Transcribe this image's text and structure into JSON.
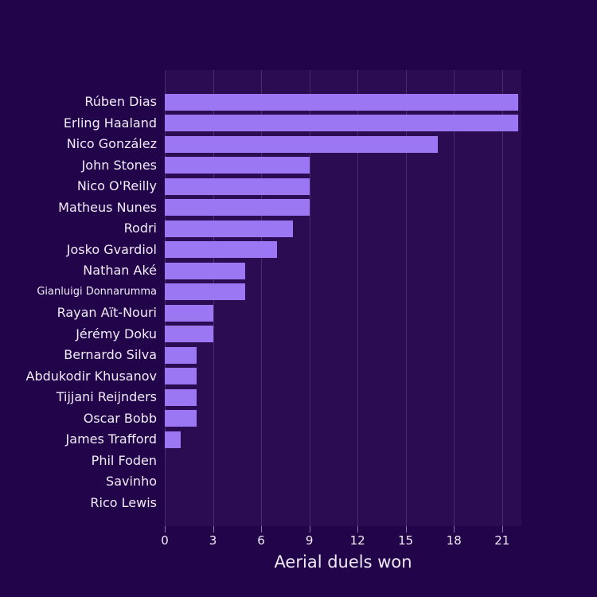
{
  "chart_data": {
    "type": "bar",
    "orientation": "horizontal",
    "xlabel": "Aerial duels won",
    "categories": [
      "Rúben Dias",
      "Erling Haaland",
      "Nico González",
      "John Stones",
      "Nico O'Reilly",
      "Matheus Nunes",
      "Rodri",
      "Josko Gvardiol",
      "Nathan Aké",
      "Gianluigi Donnarumma",
      "Rayan Aït-Nouri",
      "Jérémy Doku",
      "Bernardo Silva",
      "Abdukodir Khusanov",
      "Tijjani Reijnders",
      "Oscar Bobb",
      "James Trafford",
      "Phil Foden",
      "Savinho",
      "Rico Lewis"
    ],
    "values": [
      22,
      22,
      17,
      9,
      9,
      9,
      8,
      7,
      5,
      5,
      3,
      3,
      2,
      2,
      2,
      2,
      1,
      0,
      0,
      0
    ],
    "xticks": [
      0,
      3,
      6,
      9,
      12,
      15,
      18,
      21
    ],
    "xlim": [
      0,
      22.2
    ],
    "grid": "vertical",
    "legend": "none",
    "colors": {
      "bar": "#9b77f3",
      "figure_bg": "#22044a",
      "plot_bg": "#2b0b52",
      "grid": "rgba(215,198,255,0.18)",
      "text": "#f0ebf7"
    }
  }
}
